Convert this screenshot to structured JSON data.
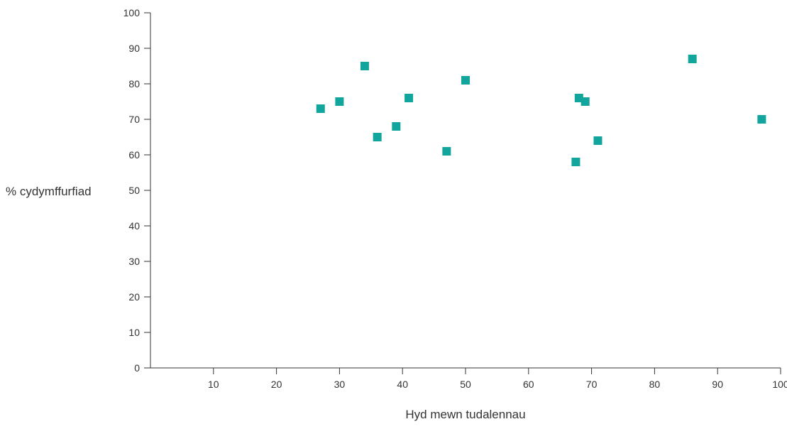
{
  "chart_data": {
    "type": "scatter",
    "title": "",
    "xlabel": "Hyd mewn tudalennau",
    "ylabel": "% cydymffurfiad",
    "xlim": [
      0,
      100
    ],
    "ylim": [
      0,
      100
    ],
    "x_ticks": [
      "10",
      "20",
      "30",
      "40",
      "50",
      "60",
      "70",
      "80",
      "90",
      "100"
    ],
    "y_ticks": [
      "0",
      "10",
      "20",
      "30",
      "40",
      "50",
      "60",
      "70",
      "80",
      "90",
      "100"
    ],
    "grid": false,
    "legend": "none",
    "marker": "square",
    "marker_color": "#11a59d",
    "axis_color": "#333333",
    "points": [
      {
        "x": 27,
        "y": 73
      },
      {
        "x": 30,
        "y": 75
      },
      {
        "x": 34,
        "y": 85
      },
      {
        "x": 36,
        "y": 65
      },
      {
        "x": 39,
        "y": 68
      },
      {
        "x": 41,
        "y": 76
      },
      {
        "x": 47,
        "y": 61
      },
      {
        "x": 50,
        "y": 81
      },
      {
        "x": 67.5,
        "y": 58
      },
      {
        "x": 68,
        "y": 76
      },
      {
        "x": 69,
        "y": 75
      },
      {
        "x": 71,
        "y": 64
      },
      {
        "x": 86,
        "y": 87
      },
      {
        "x": 97,
        "y": 70
      }
    ]
  }
}
